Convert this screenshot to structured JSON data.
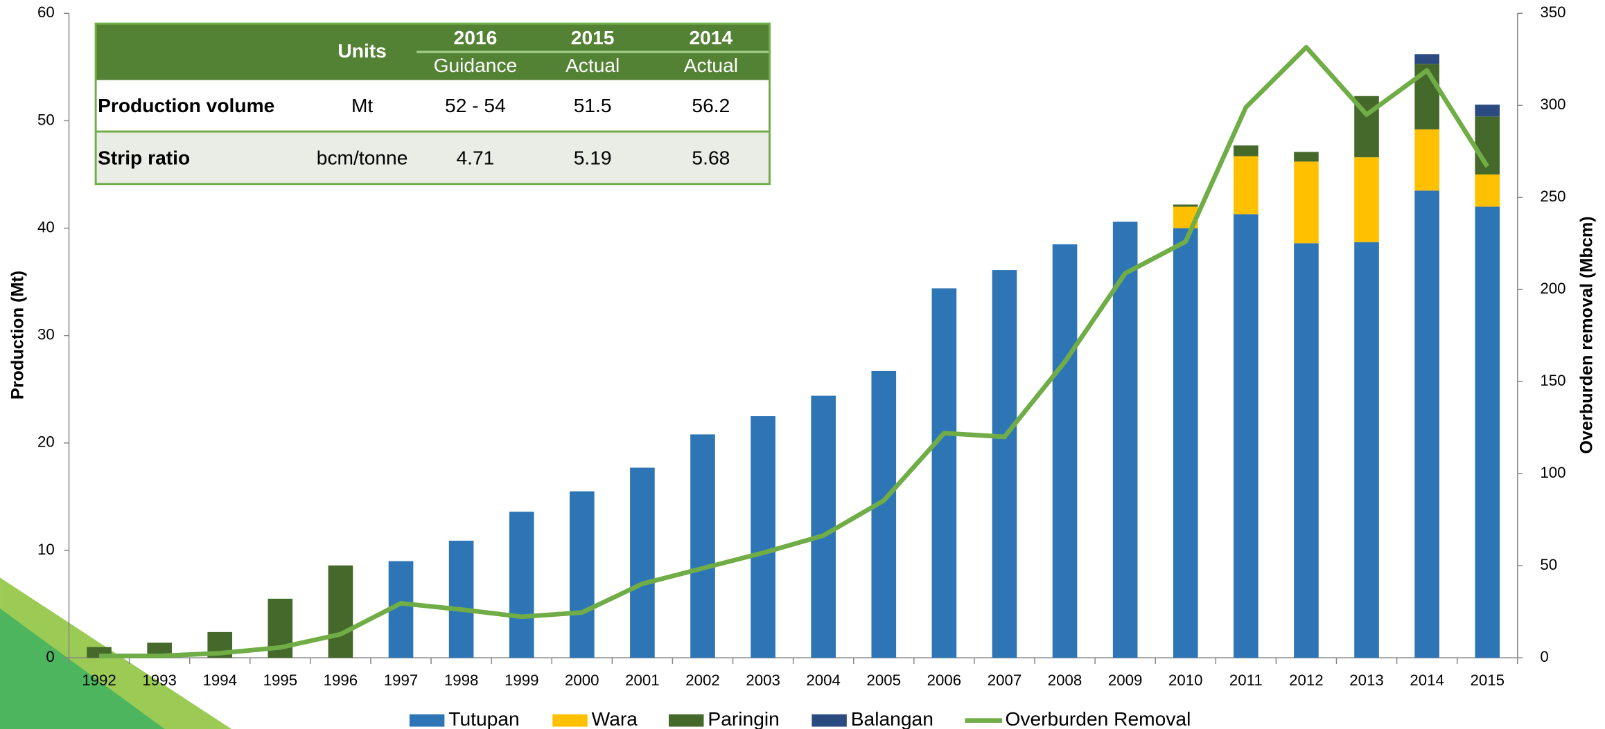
{
  "chart_data": {
    "type": "bar",
    "categories": [
      "1992",
      "1993",
      "1994",
      "1995",
      "1996",
      "1997",
      "1998",
      "1999",
      "2000",
      "2001",
      "2002",
      "2003",
      "2004",
      "2005",
      "2006",
      "2007",
      "2008",
      "2009",
      "2010",
      "2011",
      "2012",
      "2013",
      "2014",
      "2015"
    ],
    "series": [
      {
        "name": "Tutupan",
        "color": "#2e75b6",
        "values": [
          null,
          null,
          null,
          null,
          null,
          9.0,
          10.9,
          13.6,
          15.5,
          17.7,
          20.8,
          22.5,
          24.4,
          26.7,
          34.4,
          36.1,
          38.5,
          40.6,
          40.0,
          41.3,
          38.6,
          38.7,
          43.5,
          42.0
        ]
      },
      {
        "name": "Wara",
        "color": "#ffc000",
        "values": [
          null,
          null,
          null,
          null,
          null,
          null,
          null,
          null,
          null,
          null,
          null,
          null,
          null,
          null,
          null,
          null,
          null,
          null,
          2.0,
          5.4,
          7.6,
          7.9,
          5.7,
          3.0
        ]
      },
      {
        "name": "Paringin",
        "color": "#44692a",
        "values": [
          1.0,
          1.4,
          2.4,
          5.5,
          8.6,
          null,
          null,
          null,
          null,
          null,
          null,
          null,
          null,
          null,
          null,
          null,
          null,
          null,
          0.2,
          1.0,
          0.9,
          5.7,
          6.1,
          5.4
        ]
      },
      {
        "name": "Balangan",
        "color": "#2b4a80",
        "values": [
          null,
          null,
          null,
          null,
          null,
          null,
          null,
          null,
          null,
          null,
          null,
          null,
          null,
          null,
          null,
          null,
          null,
          null,
          null,
          null,
          null,
          null,
          0.9,
          1.1
        ]
      },
      {
        "name": "Overburden Removal",
        "color": "#70ad47",
        "type": "line",
        "axis": "y2",
        "values": [
          1,
          1,
          2.5,
          5.6,
          12.8,
          29.6,
          26.2,
          22.3,
          24.6,
          40.2,
          48.6,
          57,
          66.4,
          85.4,
          122,
          120,
          160.8,
          208.8,
          226,
          299,
          331.6,
          295,
          319,
          266.8
        ]
      }
    ],
    "ylabel": "Production (Mt)",
    "y2label": "Overburden removal (Mbcm)",
    "ylim": [
      0,
      60
    ],
    "yticks": [
      0,
      10,
      20,
      30,
      40,
      50,
      60
    ],
    "y2lim": [
      0,
      350
    ],
    "y2ticks": [
      0,
      50,
      100,
      150,
      200,
      250,
      300,
      350
    ],
    "legend": "bottom"
  },
  "table": {
    "header": {
      "units": "Units",
      "columns": [
        {
          "year": "2016",
          "sub": "Guidance"
        },
        {
          "year": "2015",
          "sub": "Actual"
        },
        {
          "year": "2014",
          "sub": "Actual"
        }
      ]
    },
    "rows": [
      {
        "label": "Production volume",
        "unit": "Mt",
        "values": [
          "52 - 54",
          "51.5",
          "56.2"
        ]
      },
      {
        "label": "Strip ratio",
        "unit": "bcm/tonne",
        "values": [
          "4.71",
          "5.19",
          "5.68"
        ]
      }
    ]
  }
}
